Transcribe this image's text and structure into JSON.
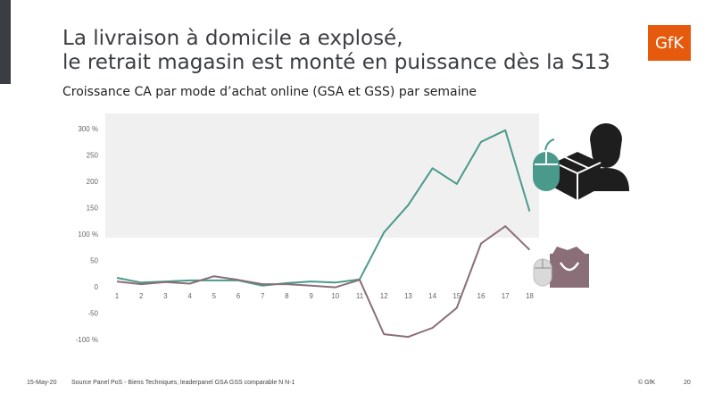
{
  "header": {
    "title_line1": "La livraison à domicile a explosé,",
    "title_line2": "le retrait magasin est monté en puissance dès la S13",
    "subtitle": "Croissance CA par mode d’achat online (GSA et GSS) par semaine",
    "logo_text": "GfK"
  },
  "colors": {
    "home_delivery": "#4a9a8c",
    "store_pickup": "#8a6e78",
    "shade": "#f0f0f0",
    "logo_bg": "#e55a0d"
  },
  "chart_data": {
    "type": "line",
    "title": "",
    "xlabel": "",
    "ylabel": "",
    "x": [
      1,
      2,
      3,
      4,
      5,
      6,
      7,
      8,
      9,
      10,
      11,
      12,
      13,
      14,
      15,
      16,
      17,
      18
    ],
    "x_tick_labels": [
      "1",
      "2",
      "3",
      "4",
      "5",
      "6",
      "7",
      "8",
      "9",
      "10",
      "11",
      "12",
      "13",
      "14",
      "15",
      "16",
      "17",
      "18"
    ],
    "ylim": [
      -100,
      300
    ],
    "y_ticks": [
      -100,
      -50,
      0,
      50,
      100,
      150,
      200,
      250,
      300
    ],
    "y_tick_labels": [
      "-100 %",
      "-50",
      "0",
      "50",
      "100 %",
      "150",
      "200",
      "250",
      "300 %"
    ],
    "grid": false,
    "shaded_band": [
      100,
      300
    ],
    "series": [
      {
        "key": "home_delivery",
        "icon": "home-delivery-icon",
        "values": [
          17,
          8,
          10,
          12,
          12,
          12,
          2,
          7,
          10,
          8,
          14,
          103,
          155,
          225,
          195,
          275,
          297,
          143
        ]
      },
      {
        "key": "store_pickup",
        "icon": "store-pickup-icon",
        "values": [
          10,
          5,
          9,
          6,
          20,
          13,
          5,
          5,
          2,
          -1,
          13,
          -90,
          -95,
          -78,
          -40,
          82,
          115,
          70
        ]
      }
    ]
  },
  "footer": {
    "date": "15-May-20",
    "source": "Source Panel PoS - Biens Techniques, leaderpanel GSA GSS comparable N N-1",
    "copyright": "© GfK",
    "page": "20"
  }
}
